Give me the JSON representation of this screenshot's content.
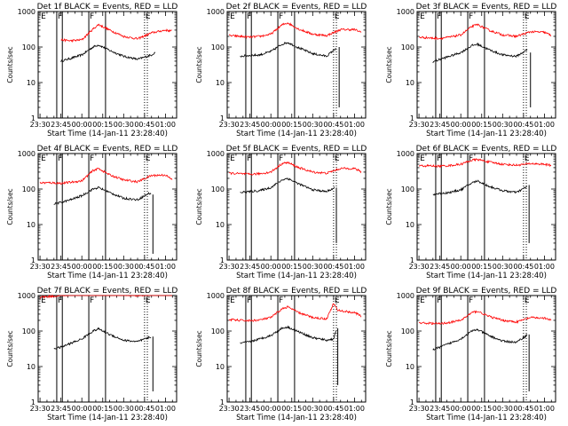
{
  "colors": {
    "events": "#000000",
    "lld": "#ff0000",
    "axes": "#000000",
    "background": "#ffffff"
  },
  "shared": {
    "xlabel": "Start Time (14-Jan-11 23:28:40)",
    "ylabel": "Counts/sec",
    "y_scale": "log",
    "ylim": [
      1,
      1000
    ],
    "xlim": [
      "23:28:40",
      "01:08:00"
    ],
    "x_tick_labels": [
      "23:30",
      "23:45",
      "00:00",
      "00:15",
      "00:30",
      "00:45",
      "01:00"
    ],
    "y_tick_labels": [
      "1",
      "10",
      "100",
      "1000"
    ],
    "solid_markers": [
      "23:42",
      "23:46",
      "00:05",
      "00:17"
    ],
    "dotted_markers": [
      "00:45",
      "00:47"
    ],
    "marker_letters": [
      {
        "t": "23:30",
        "text": "E"
      },
      {
        "t": "23:42",
        "text": "F"
      },
      {
        "t": "00:05",
        "text": "F"
      },
      {
        "t": "00:45",
        "text": "E"
      }
    ]
  },
  "chart_data": [
    {
      "type": "line",
      "title": "Det 1f BLACK = Events, RED = LLD",
      "x_start": "23:45",
      "events_end": "00:53",
      "series": [
        {
          "values": [
            [
              "23:45",
              40
            ],
            [
              "23:52",
              48
            ],
            [
              "00:00",
              60
            ],
            [
              "00:08",
              100
            ],
            [
              "00:12",
              115
            ],
            [
              "00:20",
              80
            ],
            [
              "00:30",
              55
            ],
            [
              "00:40",
              45
            ],
            [
              "00:50",
              60
            ],
            [
              "00:53",
              72
            ]
          ]
        },
        {
          "values": [
            [
              "23:45",
              160
            ],
            [
              "23:52",
              150
            ],
            [
              "00:00",
              160
            ],
            [
              "00:08",
              320
            ],
            [
              "00:12",
              430
            ],
            [
              "00:20",
              300
            ],
            [
              "00:30",
              200
            ],
            [
              "00:40",
              170
            ],
            [
              "00:50",
              250
            ],
            [
              "01:00",
              300
            ],
            [
              "01:05",
              280
            ]
          ]
        }
      ]
    },
    {
      "type": "line",
      "title": "Det 2f BLACK = Events, RED = LLD",
      "x_start": "23:38",
      "events_end": "00:47",
      "tail": {
        "t": "00:49",
        "top": 100,
        "bottom": 2
      },
      "series": [
        {
          "values": [
            [
              "23:38",
              55
            ],
            [
              "23:45",
              58
            ],
            [
              "23:52",
              60
            ],
            [
              "00:00",
              75
            ],
            [
              "00:08",
              120
            ],
            [
              "00:12",
              135
            ],
            [
              "00:20",
              95
            ],
            [
              "00:30",
              65
            ],
            [
              "00:40",
              55
            ],
            [
              "00:47",
              95
            ]
          ]
        },
        {
          "values": [
            [
              "23:30",
              210
            ],
            [
              "23:38",
              200
            ],
            [
              "23:45",
              190
            ],
            [
              "23:52",
              200
            ],
            [
              "00:00",
              230
            ],
            [
              "00:08",
              420
            ],
            [
              "00:12",
              480
            ],
            [
              "00:20",
              320
            ],
            [
              "00:30",
              230
            ],
            [
              "00:40",
              210
            ],
            [
              "00:50",
              310
            ],
            [
              "01:00",
              310
            ],
            [
              "01:05",
              260
            ]
          ]
        }
      ]
    },
    {
      "type": "line",
      "title": "Det 3f BLACK = Events, RED = LLD",
      "x_start": "23:40",
      "events_end": "00:48",
      "tail": {
        "t": "00:50",
        "top": 70,
        "bottom": 2
      },
      "series": [
        {
          "values": [
            [
              "23:40",
              38
            ],
            [
              "23:45",
              45
            ],
            [
              "23:52",
              55
            ],
            [
              "00:00",
              70
            ],
            [
              "00:08",
              110
            ],
            [
              "00:12",
              120
            ],
            [
              "00:20",
              85
            ],
            [
              "00:30",
              60
            ],
            [
              "00:40",
              55
            ],
            [
              "00:48",
              85
            ]
          ]
        },
        {
          "values": [
            [
              "23:30",
              190
            ],
            [
              "23:38",
              180
            ],
            [
              "23:45",
              175
            ],
            [
              "23:52",
              190
            ],
            [
              "00:00",
              220
            ],
            [
              "00:08",
              380
            ],
            [
              "00:12",
              430
            ],
            [
              "00:20",
              300
            ],
            [
              "00:30",
              220
            ],
            [
              "00:40",
              200
            ],
            [
              "00:50",
              270
            ],
            [
              "01:00",
              260
            ],
            [
              "01:05",
              210
            ]
          ]
        }
      ]
    },
    {
      "type": "line",
      "title": "Det 4f BLACK = Events, RED = LLD",
      "x_start": "23:40",
      "events_end": "00:50",
      "tail": {
        "t": "00:51",
        "top": 70,
        "bottom": 1.5
      },
      "series": [
        {
          "values": [
            [
              "23:40",
              38
            ],
            [
              "23:45",
              42
            ],
            [
              "23:52",
              50
            ],
            [
              "00:00",
              65
            ],
            [
              "00:08",
              100
            ],
            [
              "00:12",
              110
            ],
            [
              "00:20",
              80
            ],
            [
              "00:30",
              55
            ],
            [
              "00:40",
              50
            ],
            [
              "00:48",
              75
            ],
            [
              "00:50",
              75
            ]
          ]
        },
        {
          "values": [
            [
              "23:30",
              150
            ],
            [
              "23:38",
              150
            ],
            [
              "23:45",
              145
            ],
            [
              "23:52",
              155
            ],
            [
              "00:00",
              170
            ],
            [
              "00:08",
              330
            ],
            [
              "00:12",
              380
            ],
            [
              "00:20",
              250
            ],
            [
              "00:30",
              180
            ],
            [
              "00:40",
              160
            ],
            [
              "00:50",
              240
            ],
            [
              "01:00",
              250
            ],
            [
              "01:05",
              180
            ]
          ]
        }
      ]
    },
    {
      "type": "line",
      "title": "Det 5f BLACK = Events, RED = LLD",
      "x_start": "23:38",
      "events_end": "00:46",
      "tail": {
        "t": "00:47",
        "top": 110,
        "bottom": 3
      },
      "series": [
        {
          "values": [
            [
              "23:38",
              80
            ],
            [
              "23:45",
              85
            ],
            [
              "23:52",
              90
            ],
            [
              "00:00",
              110
            ],
            [
              "00:08",
              180
            ],
            [
              "00:12",
              200
            ],
            [
              "00:20",
              140
            ],
            [
              "00:30",
              95
            ],
            [
              "00:40",
              85
            ],
            [
              "00:46",
              110
            ]
          ]
        },
        {
          "values": [
            [
              "23:30",
              280
            ],
            [
              "23:38",
              270
            ],
            [
              "23:45",
              260
            ],
            [
              "23:52",
              270
            ],
            [
              "00:00",
              300
            ],
            [
              "00:08",
              520
            ],
            [
              "00:12",
              560
            ],
            [
              "00:20",
              400
            ],
            [
              "00:30",
              300
            ],
            [
              "00:40",
              280
            ],
            [
              "00:50",
              380
            ],
            [
              "01:00",
              380
            ],
            [
              "01:05",
              300
            ]
          ]
        }
      ]
    },
    {
      "type": "line",
      "title": "Det 6f BLACK = Events, RED = LLD",
      "x_start": "23:40",
      "events_end": "00:48",
      "tail": {
        "t": "00:49",
        "top": 130,
        "bottom": 3
      },
      "series": [
        {
          "values": [
            [
              "23:40",
              70
            ],
            [
              "23:45",
              75
            ],
            [
              "23:52",
              80
            ],
            [
              "00:00",
              95
            ],
            [
              "00:08",
              150
            ],
            [
              "00:12",
              170
            ],
            [
              "00:20",
              120
            ],
            [
              "00:30",
              90
            ],
            [
              "00:40",
              80
            ],
            [
              "00:48",
              120
            ]
          ]
        },
        {
          "values": [
            [
              "23:30",
              450
            ],
            [
              "23:38",
              450
            ],
            [
              "23:45",
              440
            ],
            [
              "23:52",
              460
            ],
            [
              "00:00",
              500
            ],
            [
              "00:08",
              650
            ],
            [
              "00:12",
              680
            ],
            [
              "00:20",
              580
            ],
            [
              "00:30",
              500
            ],
            [
              "00:40",
              470
            ],
            [
              "00:50",
              520
            ],
            [
              "01:00",
              500
            ],
            [
              "01:05",
              460
            ]
          ]
        }
      ]
    },
    {
      "type": "line",
      "title": "Det 7f BLACK = Events, RED = LLD",
      "x_start": "23:40",
      "events_end": "00:50",
      "tail": {
        "t": "00:51",
        "top": 70,
        "bottom": 2
      },
      "series": [
        {
          "values": [
            [
              "23:40",
              32
            ],
            [
              "23:45",
              35
            ],
            [
              "23:52",
              45
            ],
            [
              "00:00",
              60
            ],
            [
              "00:08",
              100
            ],
            [
              "00:12",
              115
            ],
            [
              "00:20",
              80
            ],
            [
              "00:30",
              55
            ],
            [
              "00:40",
              50
            ],
            [
              "00:50",
              70
            ]
          ]
        },
        {
          "values": [
            [
              "23:30",
              900
            ],
            [
              "23:38",
              950
            ],
            [
              "23:45",
              1000
            ],
            [
              "23:52",
              1050
            ],
            [
              "00:00",
              1100
            ],
            [
              "00:08",
              1200
            ],
            [
              "00:12",
              1150
            ],
            [
              "00:20",
              1100
            ],
            [
              "00:30",
              1050
            ],
            [
              "00:40",
              1000
            ],
            [
              "00:50",
              1100
            ],
            [
              "01:00",
              1100
            ],
            [
              "01:05",
              1050
            ]
          ]
        }
      ]
    },
    {
      "type": "line",
      "title": "Det 8f BLACK = Events, RED = LLD",
      "x_start": "23:38",
      "events_end": "00:47",
      "tail": {
        "t": "00:48",
        "top": 120,
        "bottom": 3
      },
      "series": [
        {
          "values": [
            [
              "23:38",
              45
            ],
            [
              "23:45",
              50
            ],
            [
              "23:52",
              60
            ],
            [
              "00:00",
              75
            ],
            [
              "00:08",
              120
            ],
            [
              "00:12",
              130
            ],
            [
              "00:20",
              95
            ],
            [
              "00:30",
              65
            ],
            [
              "00:40",
              55
            ],
            [
              "00:45",
              60
            ],
            [
              "00:47",
              110
            ]
          ]
        },
        {
          "values": [
            [
              "23:30",
              210
            ],
            [
              "23:38",
              200
            ],
            [
              "23:45",
              195
            ],
            [
              "23:52",
              205
            ],
            [
              "00:00",
              240
            ],
            [
              "00:08",
              420
            ],
            [
              "00:12",
              480
            ],
            [
              "00:20",
              330
            ],
            [
              "00:30",
              240
            ],
            [
              "00:40",
              220
            ],
            [
              "00:45",
              600
            ],
            [
              "00:48",
              380
            ],
            [
              "01:00",
              330
            ],
            [
              "01:05",
              260
            ]
          ]
        }
      ]
    },
    {
      "type": "line",
      "title": "Det 9f BLACK = Events, RED = LLD",
      "x_start": "23:40",
      "events_end": "00:48",
      "tail": {
        "t": "00:49",
        "top": 80,
        "bottom": 2
      },
      "series": [
        {
          "values": [
            [
              "23:40",
              30
            ],
            [
              "23:45",
              35
            ],
            [
              "23:52",
              45
            ],
            [
              "00:00",
              60
            ],
            [
              "00:08",
              100
            ],
            [
              "00:12",
              110
            ],
            [
              "00:20",
              75
            ],
            [
              "00:30",
              52
            ],
            [
              "00:40",
              48
            ],
            [
              "00:48",
              80
            ]
          ]
        },
        {
          "values": [
            [
              "23:30",
              170
            ],
            [
              "23:38",
              165
            ],
            [
              "23:45",
              160
            ],
            [
              "23:52",
              175
            ],
            [
              "00:00",
              200
            ],
            [
              "00:08",
              330
            ],
            [
              "00:12",
              360
            ],
            [
              "00:20",
              260
            ],
            [
              "00:30",
              200
            ],
            [
              "00:40",
              180
            ],
            [
              "00:50",
              240
            ],
            [
              "01:00",
              230
            ],
            [
              "01:05",
              200
            ]
          ]
        }
      ]
    }
  ]
}
